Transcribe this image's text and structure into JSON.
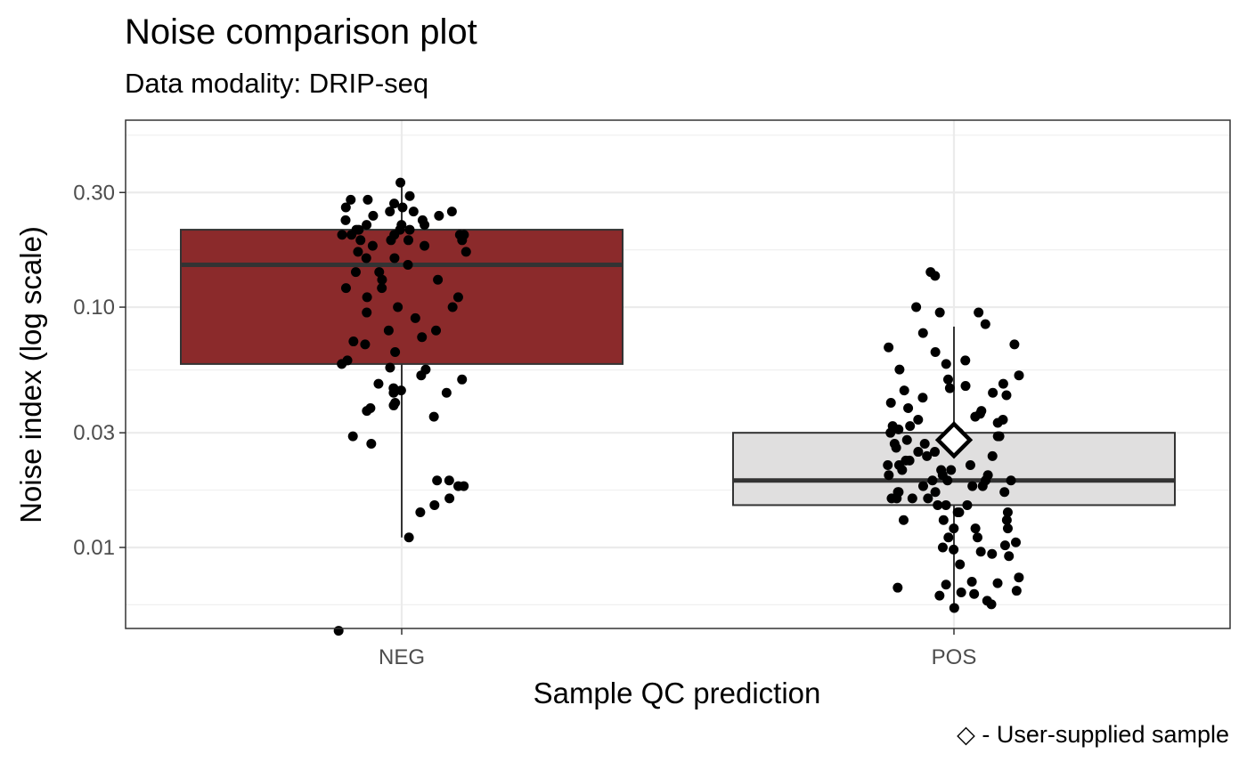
{
  "chart_data": {
    "type": "box",
    "title": "Noise comparison plot",
    "subtitle": "Data modality: DRIP-seq",
    "xlabel": "Sample QC prediction",
    "ylabel": "Noise index (log scale)",
    "caption": "◇ - User-supplied sample",
    "y_scale": "log10",
    "ylim": [
      0.0046,
      0.6
    ],
    "y_ticks": [
      0.01,
      0.03,
      0.1,
      0.3
    ],
    "y_tick_labels": [
      "0.01",
      "0.03",
      "0.10",
      "0.30"
    ],
    "categories": [
      "NEG",
      "POS"
    ],
    "grid": true,
    "boxes": [
      {
        "category": "NEG",
        "fill": "#8B2A2B",
        "q1": 0.058,
        "median": 0.15,
        "q3": 0.21,
        "whisker_low": 0.011,
        "whisker_high": 0.34,
        "points": [
          0.33,
          0.29,
          0.28,
          0.28,
          0.27,
          0.26,
          0.26,
          0.25,
          0.25,
          0.25,
          0.24,
          0.24,
          0.23,
          0.23,
          0.22,
          0.22,
          0.22,
          0.21,
          0.21,
          0.21,
          0.21,
          0.2,
          0.2,
          0.2,
          0.2,
          0.2,
          0.19,
          0.19,
          0.19,
          0.19,
          0.18,
          0.18,
          0.17,
          0.17,
          0.16,
          0.16,
          0.15,
          0.14,
          0.14,
          0.13,
          0.13,
          0.12,
          0.12,
          0.11,
          0.11,
          0.1,
          0.1,
          0.095,
          0.09,
          0.08,
          0.08,
          0.075,
          0.072,
          0.07,
          0.065,
          0.06,
          0.058,
          0.056,
          0.055,
          0.052,
          0.05,
          0.048,
          0.046,
          0.045,
          0.044,
          0.044,
          0.04,
          0.039,
          0.038,
          0.037,
          0.035,
          0.029,
          0.027,
          0.019,
          0.019,
          0.018,
          0.018,
          0.016,
          0.015,
          0.014,
          0.011,
          0.0045
        ]
      },
      {
        "category": "POS",
        "fill": "#E0DFDF",
        "q1": 0.015,
        "median": 0.019,
        "q3": 0.03,
        "whisker_low": 0.0057,
        "whisker_high": 0.083,
        "highlight": 0.028,
        "points": [
          0.14,
          0.135,
          0.1,
          0.095,
          0.095,
          0.085,
          0.078,
          0.07,
          0.068,
          0.065,
          0.06,
          0.058,
          0.055,
          0.052,
          0.05,
          0.048,
          0.047,
          0.046,
          0.045,
          0.044,
          0.043,
          0.042,
          0.04,
          0.038,
          0.037,
          0.036,
          0.035,
          0.034,
          0.034,
          0.033,
          0.032,
          0.032,
          0.031,
          0.03,
          0.03,
          0.029,
          0.029,
          0.028,
          0.028,
          0.027,
          0.027,
          0.026,
          0.026,
          0.025,
          0.025,
          0.024,
          0.024,
          0.023,
          0.023,
          0.022,
          0.022,
          0.022,
          0.021,
          0.021,
          0.021,
          0.02,
          0.02,
          0.02,
          0.019,
          0.019,
          0.019,
          0.019,
          0.018,
          0.018,
          0.018,
          0.017,
          0.017,
          0.017,
          0.017,
          0.016,
          0.016,
          0.016,
          0.016,
          0.015,
          0.015,
          0.015,
          0.014,
          0.014,
          0.014,
          0.013,
          0.013,
          0.013,
          0.012,
          0.012,
          0.012,
          0.011,
          0.011,
          0.0105,
          0.0102,
          0.01,
          0.0098,
          0.0096,
          0.0094,
          0.0092,
          0.0085,
          0.0075,
          0.0072,
          0.0071,
          0.007,
          0.0068,
          0.0066,
          0.0065,
          0.0064,
          0.0063,
          0.006,
          0.0058,
          0.0056
        ]
      }
    ]
  }
}
